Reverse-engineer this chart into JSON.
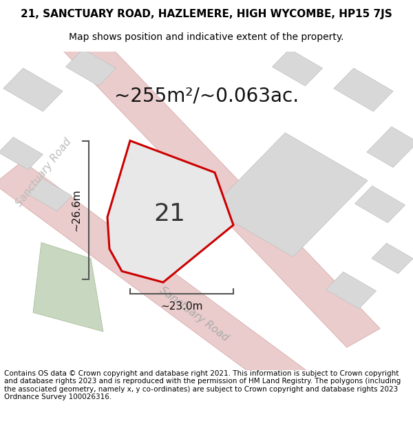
{
  "title_line1": "21, SANCTUARY ROAD, HAZLEMERE, HIGH WYCOMBE, HP15 7JS",
  "title_line2": "Map shows position and indicative extent of the property.",
  "area_text": "~255m²/~0.063ac.",
  "plot_number": "21",
  "dim_vertical": "~26.6m",
  "dim_horizontal": "~23.0m",
  "footer_text": "Contains OS data © Crown copyright and database right 2021. This information is subject to Crown copyright and database rights 2023 and is reproduced with the permission of HM Land Registry. The polygons (including the associated geometry, namely x, y co-ordinates) are subject to Crown copyright and database rights 2023 Ordnance Survey 100026316.",
  "bg_color": "#f5f5f5",
  "map_bg_color": "#f0eeee",
  "plot_fill_color": "#e8e8e8",
  "plot_edge_color": "#cc0000",
  "road_color": "#e8b0b0",
  "road_outline_color": "#d08080",
  "building_color": "#d8d8d8",
  "building_edge_color": "#b8b8b8",
  "green_color": "#c8d8c0",
  "dim_line_color": "#555555",
  "sanctuary_road_label": "Sanctuary Road",
  "title_fontsize": 11,
  "subtitle_fontsize": 10,
  "area_fontsize": 20,
  "plot_num_fontsize": 26,
  "dim_fontsize": 11,
  "road_label_fontsize": 11,
  "footer_fontsize": 7.5
}
